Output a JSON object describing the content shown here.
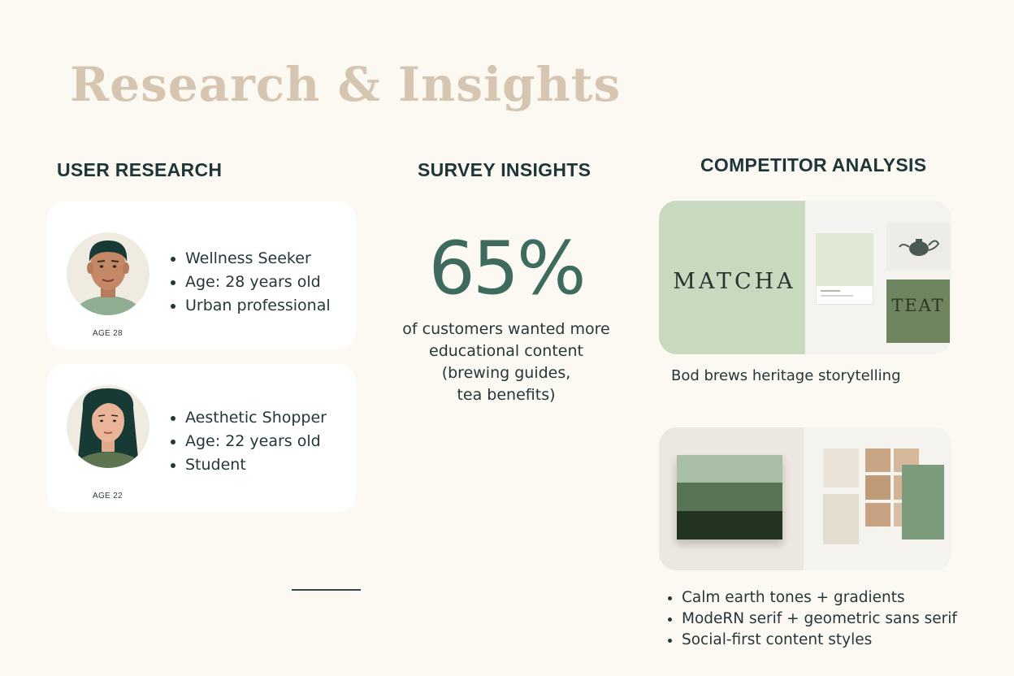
{
  "page": {
    "title": "Research & Insights"
  },
  "user_research": {
    "heading": "USER RESEARCH",
    "personas": [
      {
        "bullets": [
          "Wellness Seeker",
          "Age: 28 years old",
          "Urban professional"
        ],
        "age_tag": "AGE 28"
      },
      {
        "bullets": [
          "Aesthetic Shopper",
          "Age: 22 years old",
          "Student"
        ],
        "age_tag": "AGE 22"
      }
    ]
  },
  "survey": {
    "heading": "SURVEY INSIGHTS",
    "stat": "65%",
    "caption_lines": [
      "of customers wanted more",
      "educational content",
      "(brewing guides,",
      "tea benefits)"
    ]
  },
  "competitor": {
    "heading": "COMPETITOR ANALYSIS",
    "board1": {
      "brand": "MATCHA",
      "tile_text": "TEAT",
      "caption": "Bod brews heritage storytelling"
    },
    "bullets": [
      "Calm earth tones + gradients",
      "ModeRN serif + geometric sans serif",
      "Social-first content styles"
    ]
  },
  "colors": {
    "title": "#d6c5b1",
    "heading": "#1e3638",
    "stat": "#3f6b5f",
    "sage": "#c9d9c0",
    "olive": "#6e8560",
    "forest": "#223320"
  }
}
